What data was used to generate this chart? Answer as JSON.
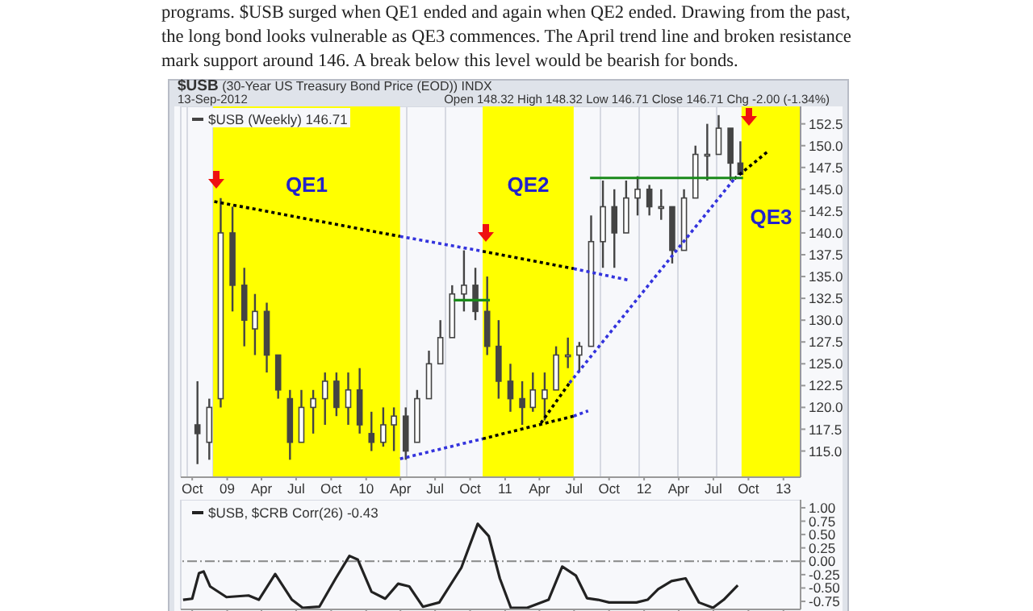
{
  "chart_data": [
    {
      "type": "candlestick",
      "title": "$USB (30-Year US Treasury Bond Price (EOD)) INDX",
      "subtitle": "13-Sep-2012",
      "annotations": [
        "programs. $USB surged when QE1 ended and again when QE2 ended. Drawing from the past, the long bond looks vulnerable as QE3 commences. The April trend line and broken resistance mark support around 146. A break below this level would be bearish for bonds.",
        "Open 148.32 High 148.32 Low 146.71 Close 146.71 Chg -2.00 (-1.34%)"
      ],
      "legend": "top left",
      "grid": true,
      "xlim": [
        "2008-09-01",
        "2013-02-15"
      ],
      "xticks": [
        {
          "value": "2008-10-01",
          "label": "Oct"
        },
        {
          "value": "2009-01-01",
          "label": "09"
        },
        {
          "value": "2009-04-01",
          "label": "Apr"
        },
        {
          "value": "2009-07-01",
          "label": "Jul"
        },
        {
          "value": "2009-10-01",
          "label": "Oct"
        },
        {
          "value": "2010-01-01",
          "label": "10"
        },
        {
          "value": "2010-04-01",
          "label": "Apr"
        },
        {
          "value": "2010-07-01",
          "label": "Jul"
        },
        {
          "value": "2010-10-01",
          "label": "Oct"
        },
        {
          "value": "2011-01-01",
          "label": "11"
        },
        {
          "value": "2011-04-01",
          "label": "Apr"
        },
        {
          "value": "2011-07-01",
          "label": "Jul"
        },
        {
          "value": "2011-10-01",
          "label": "Oct"
        },
        {
          "value": "2012-01-01",
          "label": "12"
        },
        {
          "value": "2012-04-01",
          "label": "Apr"
        },
        {
          "value": "2012-07-01",
          "label": "Jul"
        },
        {
          "value": "2012-10-01",
          "label": "Oct"
        },
        {
          "value": "2013-01-01",
          "label": "13"
        }
      ],
      "ylim": [
        112,
        154.5
      ],
      "yticks": [
        {
          "value": 115,
          "label": "115.0"
        },
        {
          "value": 117.5,
          "label": "117.5"
        },
        {
          "value": 120,
          "label": "120.0"
        },
        {
          "value": 122.5,
          "label": "122.5"
        },
        {
          "value": 125,
          "label": "125.0"
        },
        {
          "value": 127.5,
          "label": "127.5"
        },
        {
          "value": 130,
          "label": "130.0"
        },
        {
          "value": 132.5,
          "label": "132.5"
        },
        {
          "value": 135,
          "label": "135.0"
        },
        {
          "value": 137.5,
          "label": "137.5"
        },
        {
          "value": 140,
          "label": "140.0"
        },
        {
          "value": 142.5,
          "label": "142.5"
        },
        {
          "value": 145,
          "label": "145.0"
        },
        {
          "value": 147.5,
          "label": "147.5"
        },
        {
          "value": 150,
          "label": "150.0"
        },
        {
          "value": 152.5,
          "label": "152.5"
        }
      ],
      "bands": [
        {
          "axis": "x",
          "from": "2008-11-25",
          "to": "2010-03-31",
          "label": "QE1",
          "color": "#ffff00"
        },
        {
          "axis": "x",
          "from": "2010-11-03",
          "to": "2011-06-30",
          "label": "QE2",
          "color": "#ffff00"
        },
        {
          "axis": "x",
          "from": "2012-09-13",
          "to": "2013-02-15",
          "label": "QE3",
          "color": "#ffff00"
        }
      ],
      "series": [
        {
          "name": "$USB (Weekly) 146.71",
          "color": "#444444",
          "x": [
            "2008-10-15",
            "2008-11-15",
            "2008-12-15",
            "2009-01-15",
            "2009-02-15",
            "2009-03-15",
            "2009-04-15",
            "2009-05-15",
            "2009-06-15",
            "2009-07-15",
            "2009-08-15",
            "2009-09-15",
            "2009-10-15",
            "2009-11-15",
            "2009-12-15",
            "2010-01-15",
            "2010-02-15",
            "2010-03-15",
            "2010-04-15",
            "2010-05-15",
            "2010-06-15",
            "2010-07-15",
            "2010-08-15",
            "2010-09-15",
            "2010-10-15",
            "2010-11-15",
            "2010-12-15",
            "2011-01-15",
            "2011-02-15",
            "2011-03-15",
            "2011-04-15",
            "2011-05-15",
            "2011-06-15",
            "2011-07-15",
            "2011-08-15",
            "2011-09-15",
            "2011-10-15",
            "2011-11-15",
            "2011-12-15",
            "2012-01-15",
            "2012-02-15",
            "2012-03-15",
            "2012-04-15",
            "2012-05-15",
            "2012-06-15",
            "2012-07-15",
            "2012-08-15",
            "2012-09-10"
          ],
          "ohlc": [
            [
              118,
              123,
              113.5,
              117
            ],
            [
              116,
              121,
              114,
              120
            ],
            [
              121,
              144,
              120,
              140
            ],
            [
              140,
              143,
              131,
              134
            ],
            [
              134,
              136,
              127,
              130
            ],
            [
              129,
              133,
              126,
              131
            ],
            [
              131,
              132,
              124,
              126
            ],
            [
              126,
              126,
              121,
              122
            ],
            [
              121,
              122,
              114,
              116
            ],
            [
              116,
              122,
              116,
              120
            ],
            [
              120,
              122,
              117,
              121
            ],
            [
              121,
              124,
              118,
              123
            ],
            [
              123,
              124,
              119,
              120
            ],
            [
              120,
              124,
              118,
              122
            ],
            [
              122,
              124.5,
              117,
              118
            ],
            [
              117,
              119.5,
              115,
              116
            ],
            [
              116,
              120,
              115.5,
              118
            ],
            [
              118,
              120,
              115,
              119
            ],
            [
              119,
              120,
              114,
              115
            ],
            [
              116,
              122,
              116,
              121
            ],
            [
              121,
              126.5,
              121,
              125
            ],
            [
              125,
              130,
              125,
              128
            ],
            [
              128,
              134,
              128,
              133
            ],
            [
              133,
              138,
              131,
              134
            ],
            [
              134,
              136,
              130,
              131
            ],
            [
              131,
              135,
              126,
              127
            ],
            [
              127,
              130,
              121,
              123
            ],
            [
              123,
              125,
              119.5,
              121
            ],
            [
              121,
              123,
              118,
              120
            ],
            [
              120,
              124,
              119.5,
              122
            ],
            [
              121,
              124,
              118.5,
              122
            ],
            [
              122,
              127,
              122,
              126
            ],
            [
              126,
              128,
              124.5,
              126
            ],
            [
              126,
              127.5,
              124,
              127
            ],
            [
              127,
              142,
              127,
              139
            ],
            [
              139,
              146,
              136,
              143
            ],
            [
              143,
              145,
              136,
              140
            ],
            [
              140,
              146,
              140,
              144
            ],
            [
              144,
              146.5,
              142,
              145
            ],
            [
              145,
              145.5,
              142,
              143
            ],
            [
              143,
              145,
              141.5,
              143
            ],
            [
              143,
              143,
              136.5,
              138
            ],
            [
              138,
              145,
              138,
              144
            ],
            [
              144,
              150,
              144,
              149
            ],
            [
              149,
              152.5,
              146,
              149
            ],
            [
              149,
              153.5,
              149,
              152
            ],
            [
              152,
              152,
              146,
              148
            ],
            [
              148,
              150.5,
              146.71,
              146.71
            ]
          ]
        },
        {
          "type": "line",
          "color": "#000000",
          "line_style": "dotted",
          "x": [
            "2008-11-28",
            "2010-03-31"
          ],
          "values": [
            143.6,
            139.6
          ]
        },
        {
          "type": "line",
          "color": "#000000",
          "line_style": "dotted",
          "x": [
            "2010-11-03",
            "2011-06-30"
          ],
          "values": [
            137.9,
            135.9
          ]
        },
        {
          "type": "line",
          "color": "#000000",
          "line_style": "dotted",
          "x": [
            "2010-11-03",
            "2011-06-30"
          ],
          "values": [
            116.4,
            119
          ]
        },
        {
          "type": "line",
          "color": "#000000",
          "line_style": "dotted",
          "x": [
            "2011-04-05",
            "2011-06-19"
          ],
          "values": [
            118.2,
            122.8
          ]
        },
        {
          "type": "line",
          "color": "#000000",
          "line_style": "dotted",
          "x": [
            "2012-08-25",
            "2012-11-20"
          ],
          "values": [
            146.2,
            149.3
          ]
        },
        {
          "type": "line",
          "color": "#3333dd",
          "line_style": "dotted",
          "x": [
            "2010-03-31",
            "2010-11-03"
          ],
          "values": [
            139.6,
            137.9
          ]
        },
        {
          "type": "line",
          "color": "#3333dd",
          "line_style": "dotted",
          "x": [
            "2011-06-30",
            "2011-11-20"
          ],
          "values": [
            135.9,
            134.6
          ]
        },
        {
          "type": "line",
          "color": "#3333dd",
          "line_style": "dotted",
          "x": [
            "2010-03-31",
            "2010-11-03"
          ],
          "values": [
            114.1,
            116.4
          ]
        },
        {
          "type": "line",
          "color": "#3333dd",
          "line_style": "dotted",
          "x": [
            "2011-06-30",
            "2011-08-07"
          ],
          "values": [
            119,
            119.6
          ]
        },
        {
          "type": "line",
          "color": "#3333dd",
          "line_style": "dotted",
          "x": [
            "2011-06-19",
            "2012-08-25"
          ],
          "values": [
            122.8,
            146.2
          ]
        },
        {
          "type": "line",
          "color": "#1a8a1a",
          "line_style": "solid",
          "x": [
            "2011-08-12",
            "2012-09-17"
          ],
          "values": [
            146.3,
            146.3
          ]
        },
        {
          "type": "line",
          "color": "#1a8a1a",
          "line_style": "solid",
          "x": [
            "2010-08-19",
            "2010-11-22"
          ],
          "values": [
            132.3,
            132.3
          ]
        }
      ]
    },
    {
      "type": "line",
      "legend": "top left",
      "grid": true,
      "tick_labels": "y",
      "xlim": [
        "2008-09-01",
        "2013-02-15"
      ],
      "xticks": [
        {
          "value": "2008-10-01",
          "label": null
        },
        {
          "value": "2009-01-01",
          "label": null
        },
        {
          "value": "2009-04-01",
          "label": null
        },
        {
          "value": "2009-07-01",
          "label": null
        },
        {
          "value": "2009-10-01",
          "label": null
        },
        {
          "value": "2010-01-01",
          "label": null
        },
        {
          "value": "2010-04-01",
          "label": null
        },
        {
          "value": "2010-07-01",
          "label": null
        },
        {
          "value": "2010-10-01",
          "label": null
        },
        {
          "value": "2011-01-01",
          "label": null
        },
        {
          "value": "2011-04-01",
          "label": null
        },
        {
          "value": "2011-07-01",
          "label": null
        },
        {
          "value": "2011-10-01",
          "label": null
        },
        {
          "value": "2012-01-01",
          "label": null
        },
        {
          "value": "2012-04-01",
          "label": null
        },
        {
          "value": "2012-07-01",
          "label": null
        },
        {
          "value": "2012-10-01",
          "label": null
        },
        {
          "value": "2013-01-01",
          "label": null
        }
      ],
      "ylim": [
        -0.9,
        1.15
      ],
      "yticks": [
        {
          "value": 1,
          "label": "1.00"
        },
        {
          "value": 0.75,
          "label": "0.75"
        },
        {
          "value": 0.5,
          "label": "0.50"
        },
        {
          "value": 0.25,
          "label": "0.25"
        },
        {
          "value": 0,
          "label": "0.00"
        },
        {
          "value": -0.25,
          "label": "-0.25"
        },
        {
          "value": -0.5,
          "label": "-0.50"
        },
        {
          "value": -0.75,
          "label": "-0.75"
        }
      ],
      "ref_lines": [
        {
          "axis": "y",
          "value": 0,
          "color": "#888888",
          "line_style": "dashed"
        }
      ],
      "series": [
        {
          "name": "$USB, $CRB Corr(26) -0.43",
          "color": "#222222",
          "line_style": "solid",
          "x": [
            "2008-09-07",
            "2008-10-01",
            "2008-10-19",
            "2008-10-31",
            "2008-11-17",
            "2008-12-30",
            "2009-02-26",
            "2009-03-25",
            "2009-05-07",
            "2009-06-20",
            "2009-07-18",
            "2009-08-31",
            "2009-10-13",
            "2009-11-18",
            "2009-12-10",
            "2010-01-15",
            "2010-02-20",
            "2010-03-26",
            "2010-04-24",
            "2010-05-30",
            "2010-07-12",
            "2010-09-08",
            "2010-10-21",
            "2010-11-19",
            "2010-12-18",
            "2011-01-16",
            "2011-02-28",
            "2011-04-25",
            "2011-05-31",
            "2011-07-06",
            "2011-08-04",
            "2011-09-02",
            "2011-10-01",
            "2011-12-12",
            "2012-01-10",
            "2012-02-07",
            "2012-03-13",
            "2012-04-19",
            "2012-05-24",
            "2012-06-30",
            "2012-07-28",
            "2012-09-03"
          ],
          "values": [
            -0.72,
            -0.7,
            -0.22,
            -0.19,
            -0.47,
            -0.67,
            -0.64,
            -0.72,
            -0.24,
            -0.72,
            -0.87,
            -0.85,
            -0.32,
            0.1,
            0.03,
            -0.57,
            -0.7,
            -0.42,
            -0.47,
            -0.85,
            -0.77,
            -0.12,
            0.7,
            0.47,
            -0.32,
            -0.87,
            -0.87,
            -0.72,
            -0.1,
            -0.27,
            -0.69,
            -0.72,
            -0.77,
            -0.77,
            -0.72,
            -0.52,
            -0.37,
            -0.32,
            -0.77,
            -0.87,
            -0.72,
            -0.45
          ]
        }
      ]
    }
  ]
}
